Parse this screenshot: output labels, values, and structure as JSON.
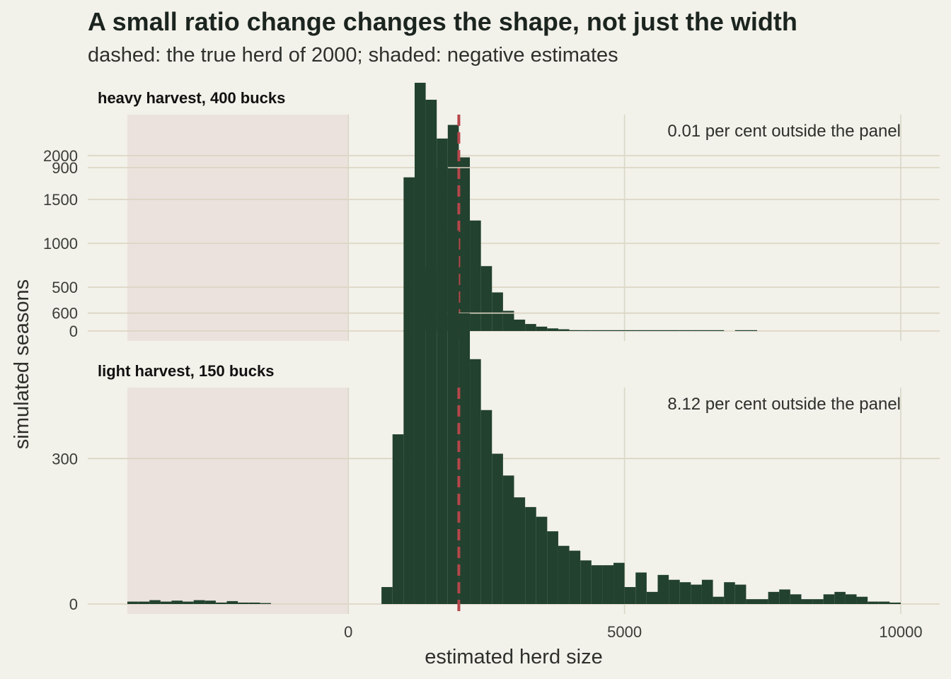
{
  "chart_data": {
    "type": "bar",
    "title": "A small ratio change changes the shape, not just the width",
    "subtitle": "dashed: the true herd of 2000; shaded: negative estimates",
    "xlabel": "estimated herd size",
    "ylabel": "simulated seasons",
    "x_ticks": [
      0,
      5000,
      10000
    ],
    "x_tick_labels": [
      "0",
      "5000",
      "10000"
    ],
    "xlim": [
      -4000,
      10000
    ],
    "bin_width": 200,
    "reference_line": {
      "value": 2000,
      "color": "#b5464a",
      "style": "dashed"
    },
    "shaded_region": {
      "from": -4000,
      "to": 0,
      "color": "#ebe2dd"
    },
    "bar_color": "#22412f",
    "panels": [
      {
        "strip_label": "heavy harvest, 400 bucks",
        "annotation": "0.01 per cent outside the panel",
        "ylim": [
          0,
          2400
        ],
        "y_ticks": [
          0,
          500,
          1000,
          1500,
          2000
        ],
        "bins": [
          [
            1000,
            5
          ],
          [
            1200,
            50
          ],
          [
            1400,
            730
          ],
          [
            1600,
            1860
          ],
          [
            1800,
            2350
          ],
          [
            2000,
            1980
          ],
          [
            2200,
            1260
          ],
          [
            2400,
            740
          ],
          [
            2600,
            440
          ],
          [
            2800,
            230
          ],
          [
            3000,
            130
          ],
          [
            3200,
            80
          ],
          [
            3400,
            50
          ],
          [
            3600,
            30
          ],
          [
            3800,
            20
          ],
          [
            4000,
            10
          ],
          [
            4200,
            8
          ],
          [
            4400,
            6
          ],
          [
            4600,
            5
          ],
          [
            4800,
            4
          ],
          [
            5000,
            3
          ],
          [
            5200,
            2
          ],
          [
            5400,
            2
          ],
          [
            5600,
            2
          ],
          [
            5800,
            2
          ],
          [
            6000,
            1
          ],
          [
            6200,
            1
          ],
          [
            6400,
            1
          ],
          [
            6600,
            1
          ],
          [
            7000,
            1
          ],
          [
            7200,
            2
          ]
        ]
      },
      {
        "strip_label": "light harvest, 150 bucks",
        "annotation": "8.12 per cent outside the panel",
        "ylim": [
          0,
          1130
        ],
        "y_ticks": [
          0,
          300,
          600,
          900
        ],
        "bins": [
          [
            -4000,
            5
          ],
          [
            -3800,
            5
          ],
          [
            -3600,
            8
          ],
          [
            -3400,
            5
          ],
          [
            -3200,
            7
          ],
          [
            -3000,
            5
          ],
          [
            -2800,
            8
          ],
          [
            -2600,
            7
          ],
          [
            -2400,
            3
          ],
          [
            -2200,
            6
          ],
          [
            -2000,
            3
          ],
          [
            -1800,
            3
          ],
          [
            -1600,
            2
          ],
          [
            600,
            35
          ],
          [
            800,
            350
          ],
          [
            1000,
            880
          ],
          [
            1200,
            1075
          ],
          [
            1400,
            1040
          ],
          [
            1600,
            960
          ],
          [
            1800,
            770
          ],
          [
            2000,
            600
          ],
          [
            2200,
            505
          ],
          [
            2400,
            400
          ],
          [
            2600,
            310
          ],
          [
            2800,
            265
          ],
          [
            3000,
            220
          ],
          [
            3200,
            200
          ],
          [
            3400,
            180
          ],
          [
            3600,
            150
          ],
          [
            3800,
            120
          ],
          [
            4000,
            110
          ],
          [
            4200,
            90
          ],
          [
            4400,
            80
          ],
          [
            4600,
            80
          ],
          [
            4800,
            85
          ],
          [
            5000,
            35
          ],
          [
            5200,
            65
          ],
          [
            5400,
            25
          ],
          [
            5600,
            60
          ],
          [
            5800,
            50
          ],
          [
            6000,
            45
          ],
          [
            6200,
            40
          ],
          [
            6400,
            50
          ],
          [
            6600,
            15
          ],
          [
            6800,
            45
          ],
          [
            7000,
            40
          ],
          [
            7200,
            10
          ],
          [
            7400,
            10
          ],
          [
            7600,
            25
          ],
          [
            7800,
            30
          ],
          [
            8000,
            20
          ],
          [
            8200,
            10
          ],
          [
            8400,
            10
          ],
          [
            8600,
            20
          ],
          [
            8800,
            25
          ],
          [
            9000,
            20
          ],
          [
            9200,
            15
          ],
          [
            9400,
            5
          ],
          [
            9600,
            5
          ],
          [
            9800,
            3
          ]
        ]
      }
    ]
  }
}
